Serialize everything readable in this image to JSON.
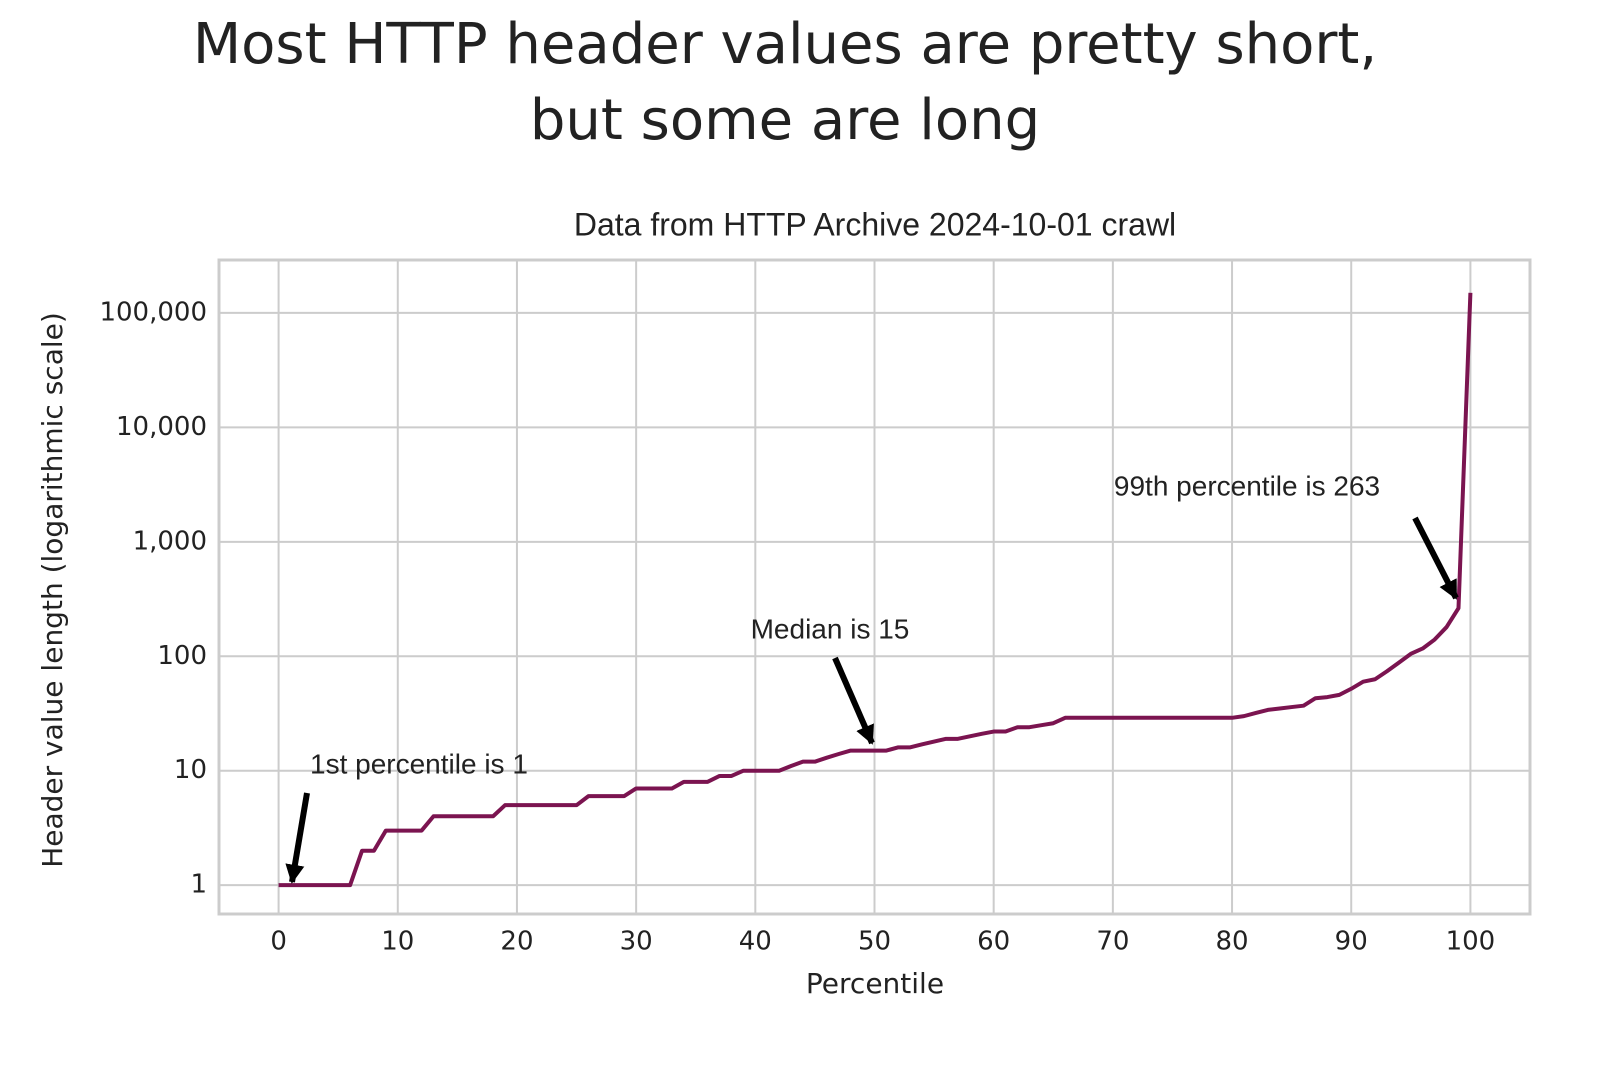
{
  "chart_data": {
    "type": "line",
    "title": [
      "Most HTTP header values are pretty short,",
      "but some are long"
    ],
    "subtitle": "Data from HTTP Archive 2024-10-01 crawl",
    "x_label": "Percentile",
    "y_label": "Header value length (logarithmic scale)",
    "annotations": [
      "1st percentile is 1",
      "Median is 15",
      "99th percentile is 263"
    ],
    "color": "#7b1450",
    "log_scale_y": true,
    "grid": true,
    "xlim": [
      -5,
      105
    ],
    "ylim": [
      0.56,
      290000
    ],
    "xticks": [
      0,
      10,
      20,
      30,
      40,
      50,
      60,
      70,
      80,
      90,
      100
    ],
    "yticks": [
      1,
      10,
      100,
      {
        "value": 1000,
        "label": "1,000"
      },
      {
        "value": 10000,
        "label": "10,000"
      },
      {
        "value": 100000,
        "label": "100,000"
      }
    ],
    "x": [
      0,
      1,
      2,
      3,
      4,
      5,
      6,
      7,
      8,
      9,
      10,
      11,
      12,
      13,
      14,
      15,
      16,
      17,
      18,
      19,
      20,
      21,
      22,
      23,
      24,
      25,
      26,
      27,
      28,
      29,
      30,
      31,
      32,
      33,
      34,
      35,
      36,
      37,
      38,
      39,
      40,
      41,
      42,
      43,
      44,
      45,
      46,
      47,
      48,
      49,
      50,
      51,
      52,
      53,
      54,
      55,
      56,
      57,
      58,
      59,
      60,
      61,
      62,
      63,
      64,
      65,
      66,
      67,
      68,
      69,
      70,
      71,
      72,
      73,
      74,
      75,
      76,
      77,
      78,
      79,
      80,
      81,
      82,
      83,
      84,
      85,
      86,
      87,
      88,
      89,
      90,
      91,
      92,
      93,
      94,
      95,
      96,
      97,
      98,
      99,
      100
    ],
    "values": [
      1,
      1,
      1,
      1,
      1,
      1,
      1,
      2,
      2,
      3,
      3,
      3,
      3,
      4,
      4,
      4,
      4,
      4,
      4,
      5,
      5,
      5,
      5,
      5,
      5,
      5,
      6,
      6,
      6,
      6,
      7,
      7,
      7,
      7,
      8,
      8,
      8,
      9,
      9,
      10,
      10,
      10,
      10,
      11,
      12,
      12,
      13,
      14,
      15,
      15,
      15,
      15,
      16,
      16,
      17,
      18,
      19,
      19,
      20,
      21,
      22,
      22,
      24,
      24,
      25,
      26,
      29,
      29,
      29,
      29,
      29,
      29,
      29,
      29,
      29,
      29,
      29,
      29,
      29,
      29,
      29,
      30,
      32,
      34,
      35,
      36,
      37,
      43,
      44,
      46,
      52,
      60,
      63,
      74,
      88,
      105,
      117,
      140,
      180,
      263,
      150000
    ]
  }
}
